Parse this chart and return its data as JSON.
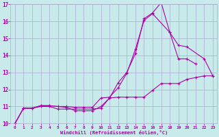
{
  "bg_color": "#c8eaea",
  "grid_color": "#aaaacc",
  "line_color": "#aa00aa",
  "xlabel": "Windchill (Refroidissement éolien,°C)",
  "xlim": [
    -0.5,
    23.5
  ],
  "ylim": [
    10.0,
    17.0
  ],
  "yticks": [
    10,
    11,
    12,
    13,
    14,
    15,
    16,
    17
  ],
  "xticks": [
    0,
    1,
    2,
    3,
    4,
    5,
    6,
    7,
    8,
    9,
    10,
    11,
    12,
    13,
    14,
    15,
    16,
    17,
    18,
    19,
    20,
    21,
    22,
    23
  ],
  "series": [
    {
      "x": [
        0,
        1,
        2,
        3,
        4,
        5,
        6,
        7,
        8,
        9,
        10,
        11,
        12,
        13,
        14,
        15,
        16,
        17,
        18,
        19,
        20,
        21
      ],
      "y": [
        10.0,
        10.9,
        10.9,
        11.0,
        11.0,
        10.85,
        10.85,
        10.85,
        10.85,
        10.85,
        10.9,
        11.5,
        12.4,
        13.0,
        14.1,
        16.15,
        16.5,
        17.1,
        15.35,
        13.8,
        13.8,
        13.5
      ]
    },
    {
      "x": [
        0,
        1,
        2,
        3,
        4,
        5,
        6,
        7,
        8,
        9,
        10,
        11,
        12,
        13,
        14,
        15,
        16,
        18,
        19,
        20,
        22,
        23
      ],
      "y": [
        10.0,
        10.9,
        10.9,
        11.05,
        11.05,
        11.0,
        11.0,
        10.95,
        10.95,
        10.95,
        11.5,
        11.55,
        12.1,
        12.95,
        14.35,
        16.05,
        16.45,
        15.35,
        14.6,
        14.5,
        13.8,
        12.8
      ]
    },
    {
      "x": [
        0,
        1,
        2,
        3,
        4,
        5,
        6,
        7,
        8,
        9,
        10,
        11,
        12,
        13,
        14,
        15,
        16,
        17,
        18,
        19,
        20,
        21,
        22,
        23
      ],
      "y": [
        10.0,
        10.9,
        10.9,
        11.05,
        11.05,
        11.0,
        10.95,
        10.75,
        10.75,
        10.75,
        11.0,
        11.5,
        11.55,
        11.55,
        11.55,
        11.55,
        11.95,
        12.35,
        12.35,
        12.35,
        12.6,
        12.7,
        12.8,
        12.8
      ]
    }
  ]
}
